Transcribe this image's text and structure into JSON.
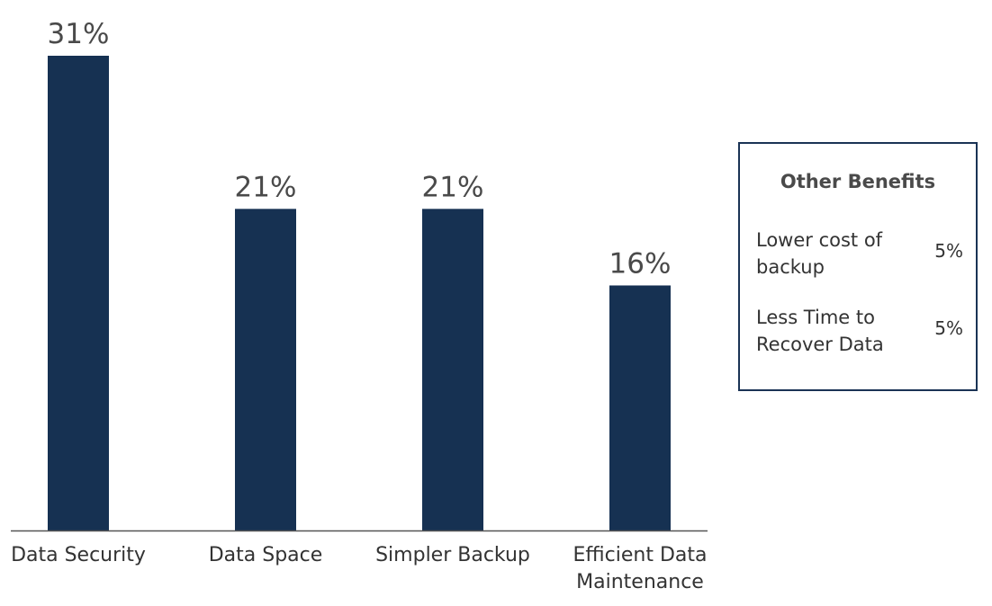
{
  "chart_data": {
    "type": "bar",
    "categories": [
      "Data Security",
      "Data Space",
      "Simpler Backup",
      "Efficient Data\nMaintenance"
    ],
    "values": [
      31,
      21,
      21,
      16
    ],
    "value_labels": [
      "31%",
      "21%",
      "21%",
      "16%"
    ],
    "ylim": [
      0,
      31
    ],
    "grid": false,
    "colors": {
      "bar": "#163152",
      "baseline": "#555555"
    }
  },
  "other_benefits": {
    "title": "Other Benefits",
    "items": [
      {
        "label": "Lower cost of backup",
        "value": "5%"
      },
      {
        "label": "Less Time to Recover Data",
        "value": "5%"
      }
    ]
  }
}
